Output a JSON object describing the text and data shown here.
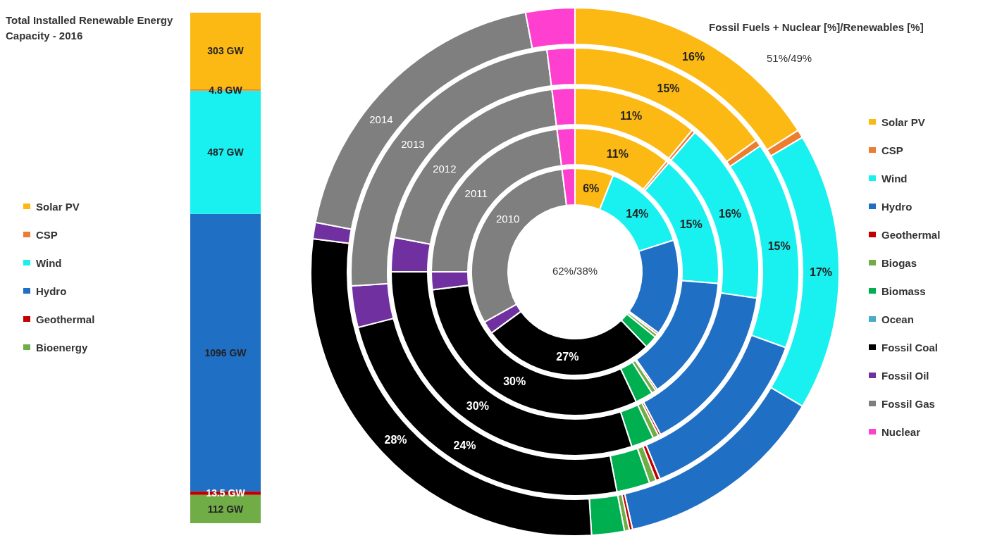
{
  "chart_data": [
    {
      "type": "bar",
      "title": "Total Installed Renewable Energy Capacity - 2016",
      "categories": [
        null
      ],
      "stacked": true,
      "legend": "left",
      "series": [
        {
          "name": "Bioenergy",
          "color": "#70ad47",
          "values": [
            112
          ],
          "value_labels": [
            "112 GW"
          ]
        },
        {
          "name": "Geothermal",
          "color": "#c00000",
          "values": [
            13.5
          ],
          "value_labels": [
            "13.5 GW"
          ]
        },
        {
          "name": "Hydro",
          "color": "#1f6fc5",
          "values": [
            1096
          ],
          "value_labels": [
            "1096 GW"
          ]
        },
        {
          "name": "Wind",
          "color": "#19f0f0",
          "values": [
            487
          ],
          "value_labels": [
            "487 GW"
          ]
        },
        {
          "name": "CSP",
          "color": "#ed7d31",
          "values": [
            4.8
          ],
          "value_labels": [
            "4.8 GW"
          ]
        },
        {
          "name": "Solar PV",
          "color": "#fdb913",
          "values": [
            303
          ],
          "value_labels": [
            "303 GW"
          ]
        }
      ]
    },
    {
      "type": "donut",
      "subtitle": "Fossil Fuels + Nuclear [%]/Renewables [%]",
      "annotations": [
        "62%/38%",
        "51%/49%"
      ],
      "legend": "right",
      "categories": [
        "Solar PV",
        "CSP",
        "Wind",
        "Hydro",
        "Geothermal",
        "Biogas",
        "Biomass",
        "Ocean",
        "Fossil Coal",
        "Fossil Oil",
        "Fossil Gas",
        "Nuclear"
      ],
      "colors": [
        "#fdb913",
        "#ed7d31",
        "#19f0f0",
        "#1f6fc5",
        "#c00000",
        "#70ad47",
        "#00b050",
        "#4bacc6",
        "#000000",
        "#7030a0",
        "#7f7f7f",
        "#ff3fcf"
      ],
      "series": [
        {
          "name": "2010",
          "values": [
            6,
            null,
            14,
            15,
            0.3,
            0.5,
            2,
            0,
            27,
            2,
            31,
            2
          ],
          "value_labels": [
            "6%",
            null,
            "14%",
            null,
            null,
            null,
            null,
            null,
            "27%",
            null,
            null,
            null
          ]
        },
        {
          "name": "2011",
          "values": [
            11,
            0.3,
            15,
            14,
            0.2,
            0.5,
            2,
            0,
            30,
            2,
            23,
            2
          ],
          "value_labels": [
            "11%",
            null,
            "15%",
            null,
            null,
            null,
            null,
            null,
            "30%",
            null,
            null,
            null
          ]
        },
        {
          "name": "2012",
          "values": [
            11,
            0.3,
            16,
            15,
            0.2,
            0.5,
            2,
            0,
            30,
            3,
            20,
            2
          ],
          "value_labels": [
            "11%",
            null,
            "16%",
            null,
            null,
            null,
            null,
            null,
            "30%",
            null,
            null,
            null
          ]
        },
        {
          "name": "2013",
          "values": [
            15,
            0.5,
            15,
            13.3,
            0.3,
            0.5,
            2.4,
            0,
            24,
            3,
            24,
            2
          ],
          "value_labels": [
            "15%",
            null,
            "15%",
            null,
            null,
            null,
            null,
            null,
            "24%",
            null,
            null,
            null
          ]
        },
        {
          "name": "2014",
          "values": [
            16,
            0.5,
            17,
            13,
            0.2,
            0.3,
            2,
            0,
            28,
            1,
            19,
            3
          ],
          "value_labels": [
            "16%",
            null,
            "17%",
            null,
            null,
            null,
            null,
            null,
            "28%",
            null,
            null,
            null
          ]
        }
      ]
    }
  ]
}
